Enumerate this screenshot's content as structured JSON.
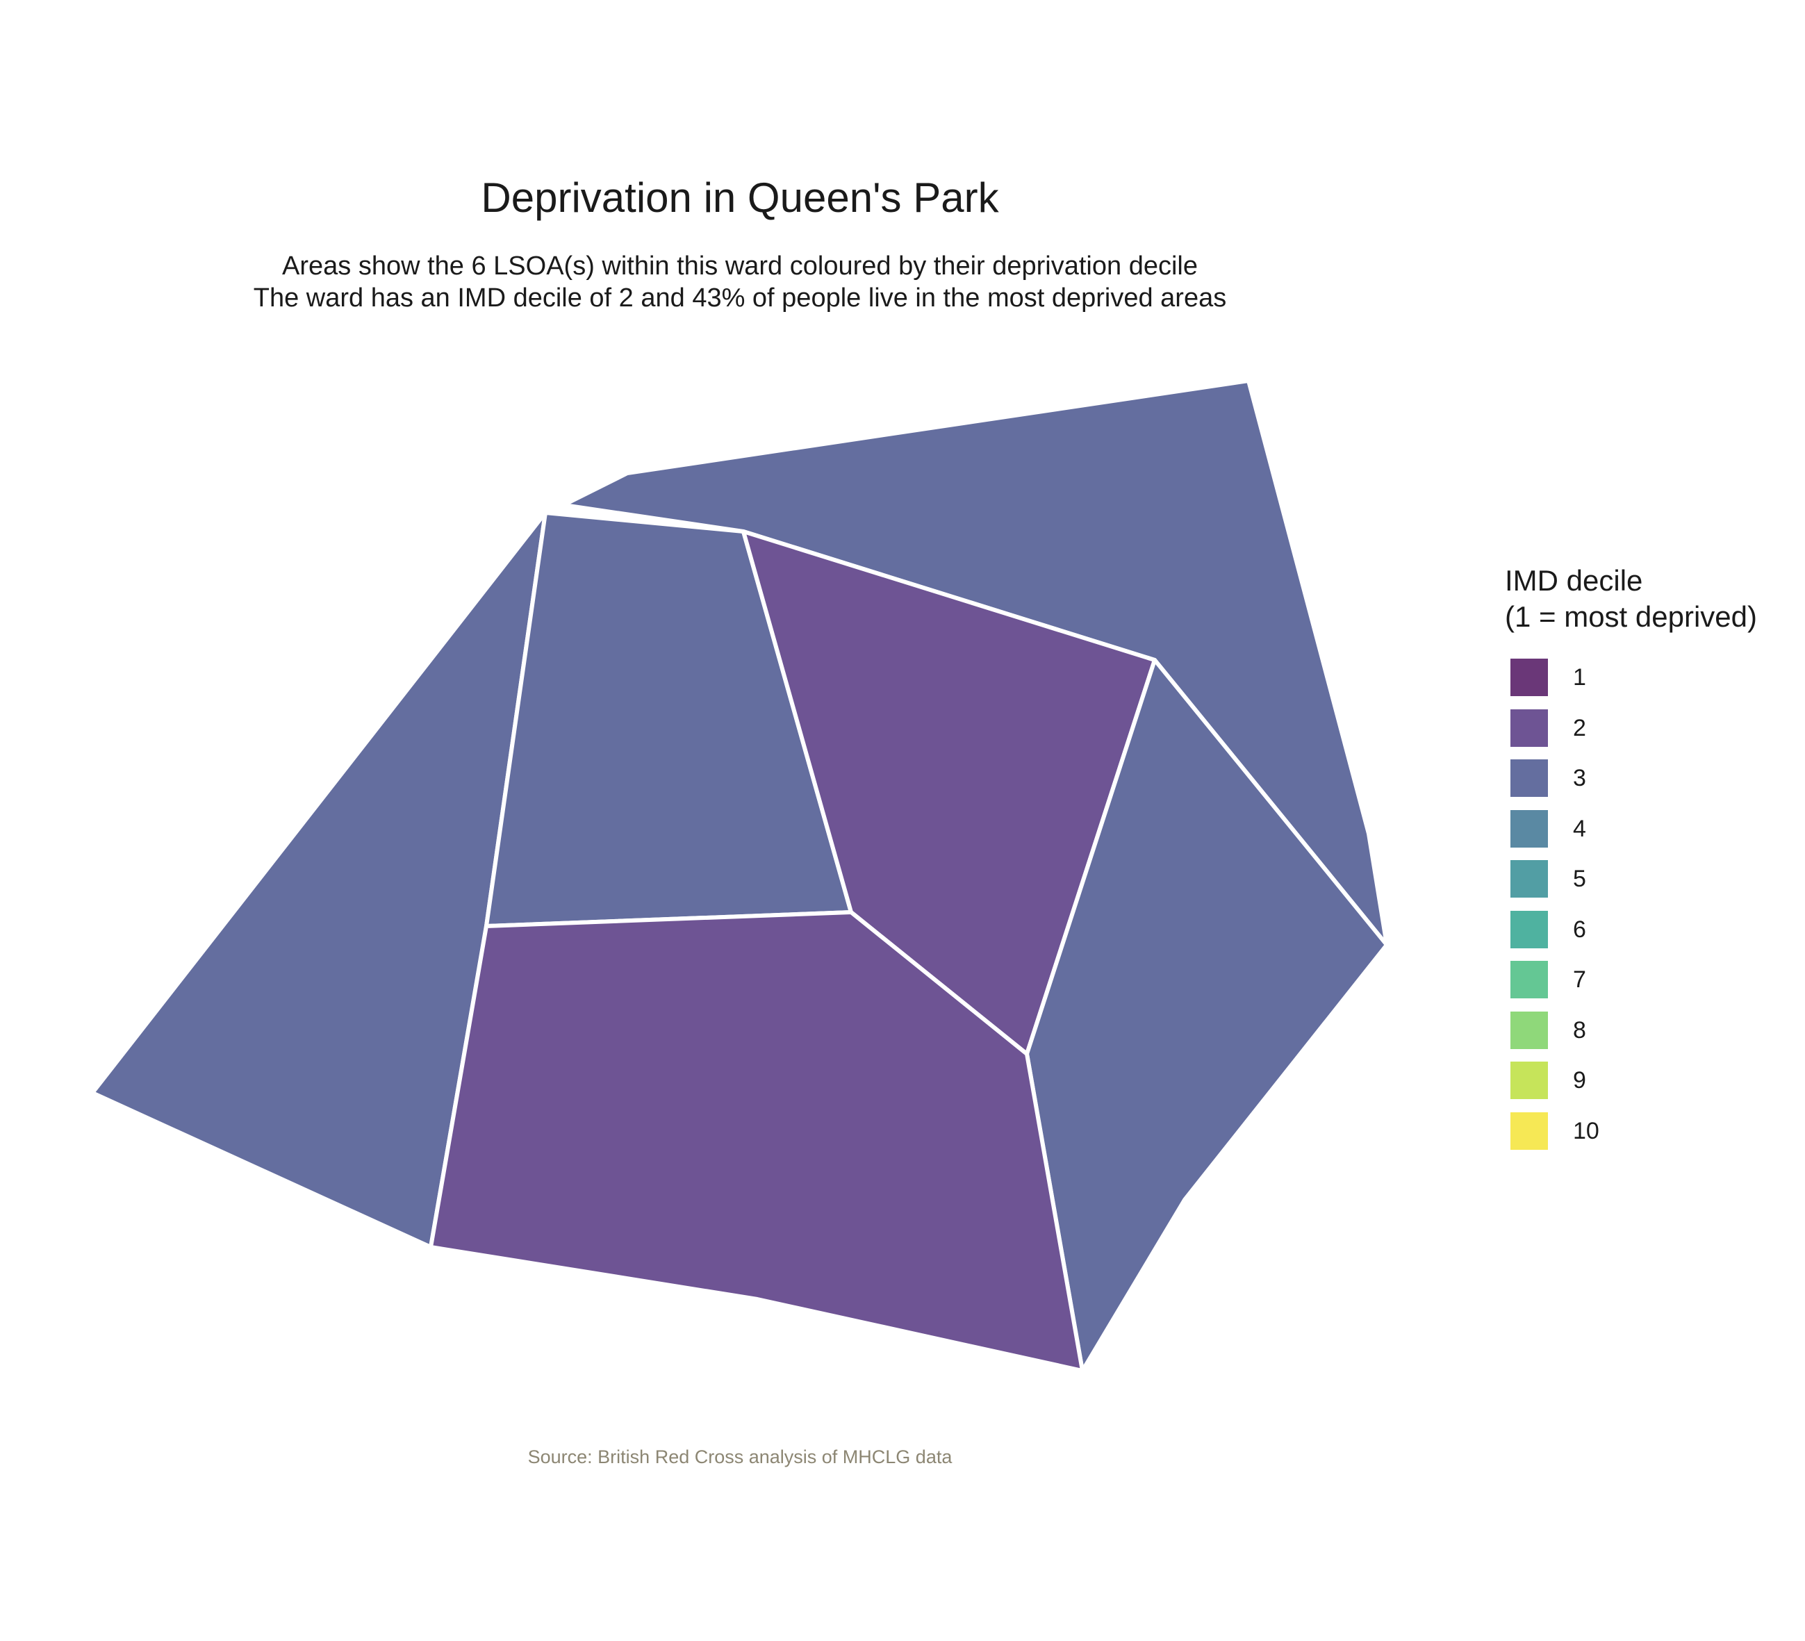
{
  "title": "Deprivation in Queen's Park",
  "subtitle": [
    "Areas show the 6 LSOA(s) within this ward coloured by their deprivation decile",
    "The ward has an IMD decile of 2 and 43% of people live in the most deprived areas"
  ],
  "legend": {
    "title": [
      "IMD decile",
      "(1 = most deprived)"
    ],
    "items": [
      {
        "label": "1",
        "color": "#6A3778"
      },
      {
        "label": "2",
        "color": "#6E5494"
      },
      {
        "label": "3",
        "color": "#646E9F"
      },
      {
        "label": "4",
        "color": "#5A89A3"
      },
      {
        "label": "5",
        "color": "#529EA4"
      },
      {
        "label": "6",
        "color": "#4FB2A0"
      },
      {
        "label": "7",
        "color": "#64C794"
      },
      {
        "label": "8",
        "color": "#8FD87A"
      },
      {
        "label": "9",
        "color": "#C6E45A"
      },
      {
        "label": "10",
        "color": "#F6E855"
      }
    ]
  },
  "areas": [
    {
      "name": "west",
      "decile": 3
    },
    {
      "name": "north-west-center",
      "decile": 3
    },
    {
      "name": "north-east",
      "decile": 3
    },
    {
      "name": "center-north",
      "decile": 2
    },
    {
      "name": "east",
      "decile": 3
    },
    {
      "name": "south",
      "decile": 2
    }
  ],
  "caption": "Source: British Red Cross analysis of MHCLG data"
}
